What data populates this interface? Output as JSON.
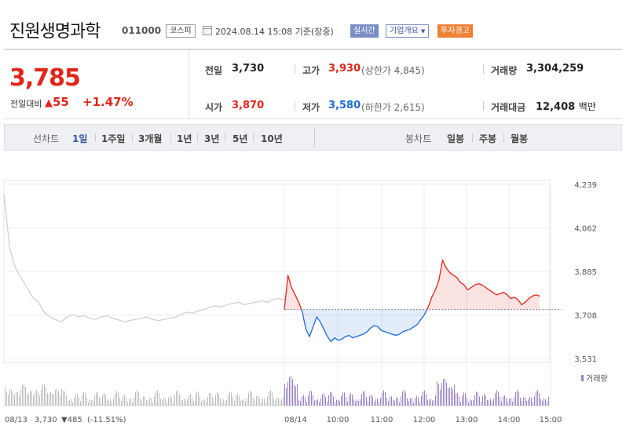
{
  "header": {
    "name": "진원생명과학",
    "code": "011000",
    "market": "코스피",
    "timestamp": "2024.08.14 15:08 기준(장중)",
    "btn_realtime": "실시간",
    "btn_company": "기업개요",
    "btn_warning": "투자경고"
  },
  "summary": {
    "price": "3,785",
    "change_label": "전일대비",
    "change": "55",
    "change_pct": "+1.47%",
    "prev_label": "전일",
    "prev": "3,730",
    "open_label": "시가",
    "open": "3,870",
    "high_label": "고가",
    "high": "3,930",
    "upper_limit": "(상한가 4,845)",
    "low_label": "저가",
    "low": "3,580",
    "lower_limit": "(하한가 2,615)",
    "volume_label": "거래량",
    "volume": "3,304,259",
    "amount_label": "거래대금",
    "amount": "12,408",
    "amount_unit": "백만"
  },
  "tabs": {
    "line_label": "선차트",
    "line": [
      "1일",
      "1주일",
      "3개월",
      "1년",
      "3년",
      "5년",
      "10년"
    ],
    "candle_label": "봉차트",
    "candle": [
      "일봉",
      "주봉",
      "월봉"
    ],
    "active": "1일"
  },
  "colors": {
    "up": "#e0261b",
    "down": "#1c6ad8",
    "volume": "#9b7fc4",
    "prev_line": "#cccccc"
  },
  "chart_data": {
    "type": "line",
    "y_ticks": [
      "4,239",
      "4,062",
      "3,885",
      "3,708",
      "3,531"
    ],
    "ylim": [
      3531,
      4239
    ],
    "baseline": 3730,
    "x_ticks": [
      "08/14",
      "10:00",
      "11:00",
      "12:00",
      "13:00",
      "14:00",
      "15:00"
    ],
    "prev_day_label": "08/13",
    "prev_day_close": "3,730",
    "prev_day_change": "485",
    "prev_day_pct": "(-11.51%)",
    "volume_label": "거래량",
    "prev_series": [
      4200,
      3980,
      3900,
      3860,
      3820,
      3780,
      3760,
      3720,
      3700,
      3690,
      3680,
      3700,
      3710,
      3700,
      3705,
      3695,
      3690,
      3700,
      3705,
      3695,
      3688,
      3680,
      3685,
      3690,
      3695,
      3700,
      3690,
      3685,
      3690,
      3695,
      3700,
      3710,
      3720,
      3715,
      3725,
      3730,
      3740,
      3745,
      3740,
      3750,
      3755,
      3760,
      3750,
      3755,
      3760,
      3765,
      3760,
      3770,
      3775,
      3770
    ],
    "today_series": [
      3730,
      3870,
      3820,
      3790,
      3760,
      3720,
      3650,
      3620,
      3660,
      3700,
      3680,
      3650,
      3620,
      3600,
      3615,
      3605,
      3610,
      3620,
      3625,
      3615,
      3620,
      3625,
      3630,
      3640,
      3655,
      3665,
      3660,
      3645,
      3640,
      3635,
      3630,
      3625,
      3630,
      3640,
      3645,
      3650,
      3660,
      3670,
      3690,
      3710,
      3740,
      3780,
      3810,
      3850,
      3930,
      3900,
      3880,
      3870,
      3860,
      3840,
      3830,
      3810,
      3820,
      3830,
      3835,
      3830,
      3820,
      3810,
      3800,
      3790,
      3795,
      3800,
      3790,
      3775,
      3780,
      3770,
      3750,
      3760,
      3775,
      3785,
      3790,
      3785
    ]
  }
}
